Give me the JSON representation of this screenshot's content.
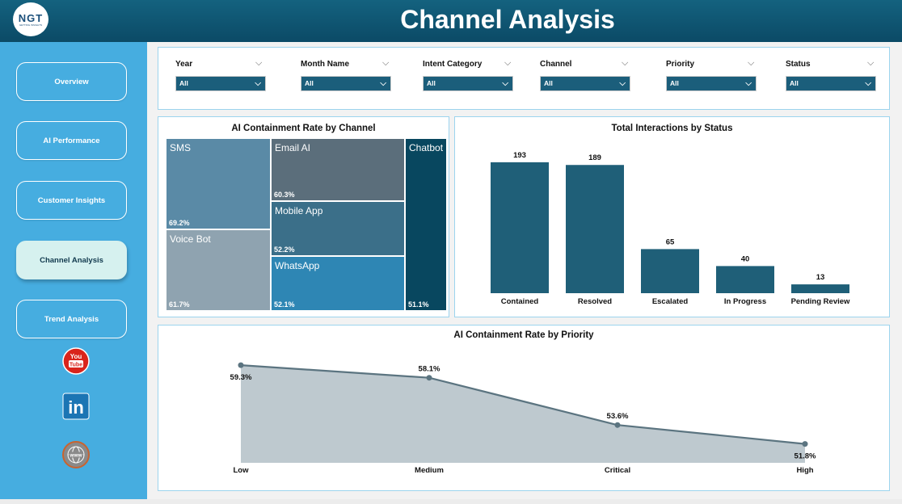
{
  "header": {
    "logo_text": "NGT",
    "logo_subtext": "GETTING INSIGHTS",
    "title": "Channel Analysis"
  },
  "sidebar": {
    "items": [
      {
        "label": "Overview"
      },
      {
        "label": "AI Performance"
      },
      {
        "label": "Customer Insights"
      },
      {
        "label": "Channel Analysis",
        "active": true
      },
      {
        "label": "Trend Analysis"
      }
    ],
    "social": [
      {
        "icon": "youtube-icon",
        "text": "You Tube"
      },
      {
        "icon": "linkedin-icon",
        "text": "in"
      },
      {
        "icon": "globe-icon",
        "text": "www"
      }
    ]
  },
  "filters": [
    {
      "label": "Year",
      "value": "All"
    },
    {
      "label": "Month Name",
      "value": "All"
    },
    {
      "label": "Intent Category",
      "value": "All"
    },
    {
      "label": "Channel",
      "value": "All"
    },
    {
      "label": "Priority",
      "value": "All"
    },
    {
      "label": "Status",
      "value": "All"
    }
  ],
  "treemap": {
    "title": "AI Containment Rate by Channel",
    "tiles": [
      {
        "name": "SMS",
        "value": "69.2%"
      },
      {
        "name": "Voice Bot",
        "value": "61.7%"
      },
      {
        "name": "Email AI",
        "value": "60.3%"
      },
      {
        "name": "Mobile App",
        "value": "52.2%"
      },
      {
        "name": "WhatsApp",
        "value": "52.1%"
      },
      {
        "name": "Chatbot",
        "value": "51.1%"
      }
    ],
    "colors": [
      "#5a8aa6",
      "#8fa3b0",
      "#5b6e7b",
      "#3b6f89",
      "#2e86b4",
      "#08475f"
    ]
  },
  "chart_data": [
    {
      "type": "bar",
      "title": "Total Interactions by Status",
      "categories": [
        "Contained",
        "Resolved",
        "Escalated",
        "In Progress",
        "Pending Review"
      ],
      "values": [
        193,
        189,
        65,
        40,
        13
      ],
      "color": "#1f5f78"
    },
    {
      "type": "area",
      "title": "AI Containment Rate by Priority",
      "categories": [
        "Low",
        "Medium",
        "Critical",
        "High"
      ],
      "values": [
        59.3,
        58.1,
        53.6,
        51.8
      ],
      "labels": [
        "59.3%",
        "58.1%",
        "53.6%",
        "51.8%"
      ],
      "line_color": "#5b7480",
      "fill_color": "#bec9cf"
    }
  ]
}
